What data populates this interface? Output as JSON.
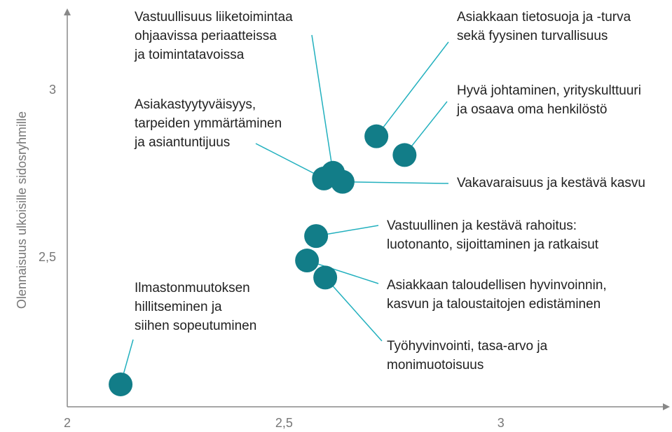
{
  "chart_data": {
    "type": "scatter",
    "y_label": "Olennaisuus ulkoisille sidosryhmille",
    "x": [
      2.123,
      2.713,
      2.778,
      2.613,
      2.592,
      2.635,
      2.574,
      2.553,
      2.595
    ],
    "values": [
      2.122,
      2.863,
      2.807,
      2.754,
      2.737,
      2.727,
      2.565,
      2.492,
      2.441
    ],
    "labels": [
      [
        "Ilmastonmuutoksen",
        "hillitseminen ja",
        "siihen sopeutuminen"
      ],
      [
        "Asiakkaan tietosuoja ja -turva",
        "sekä fyysinen turvallisuus"
      ],
      [
        "Hyvä johtaminen, yrityskulttuuri",
        "ja osaava oma henkilöstö"
      ],
      [
        "Vastuullisuus liiketoimintaa",
        "ohjaavissa periaatteissa",
        "ja toimintatavoissa"
      ],
      [
        "Asiakastyytyväisyys,",
        "tarpeiden ymmärtäminen",
        "ja asiantuntijuus"
      ],
      [
        "Vakavaraisuus ja kestävä kasvu"
      ],
      [
        "Vastuullinen ja kestävä rahoitus:",
        "luotonanto, sijoittaminen ja ratkaisut"
      ],
      [
        "Asiakkaan taloudellisen hyvinvoinnin,",
        "kasvun ja taloustaitojen edistäminen"
      ],
      [
        "Työhyvinvointi, tasa-arvo ja",
        "monimuotoisuus"
      ]
    ],
    "color": "#127d88",
    "line_color": "#22b0be",
    "xlim": [
      2,
      3.39
    ],
    "ylim": [
      2.055,
      3.245
    ],
    "xticks": [
      2,
      {
        "value": 2.5,
        "label": "2,5"
      },
      3
    ],
    "yticks": [
      {
        "value": 2.5,
        "label": "2,5"
      },
      3
    ]
  }
}
